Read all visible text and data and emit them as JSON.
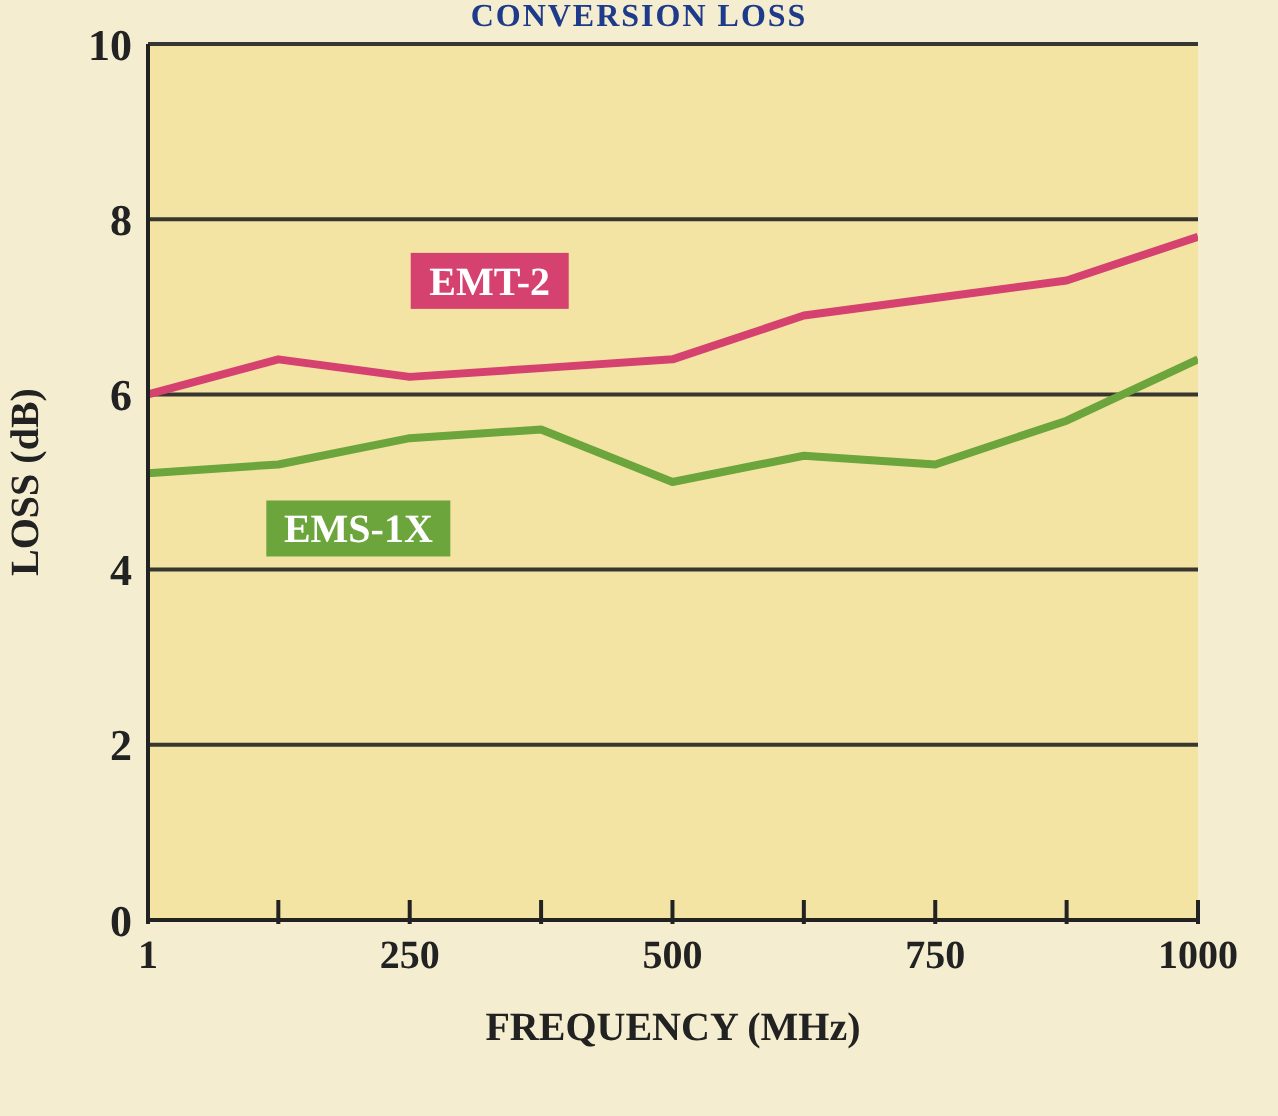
{
  "chart_data": {
    "type": "line",
    "title": "CONVERSION LOSS",
    "xlabel": "FREQUENCY (MHz)",
    "ylabel": "LOSS (dB)",
    "x": [
      1,
      125,
      250,
      375,
      500,
      625,
      750,
      875,
      1000
    ],
    "series": [
      {
        "name": "EMT-2",
        "color": "#d6426f",
        "values": [
          6.0,
          6.4,
          6.2,
          6.3,
          6.4,
          6.9,
          7.1,
          7.3,
          7.8
        ]
      },
      {
        "name": "EMS-1X",
        "color": "#6ca53c",
        "values": [
          5.1,
          5.2,
          5.5,
          5.6,
          5.0,
          5.3,
          5.2,
          5.7,
          6.4
        ]
      }
    ],
    "xlim": [
      1,
      1000
    ],
    "xticks": [
      1,
      {
        "value": 125,
        "label": null
      },
      250,
      {
        "value": 375,
        "label": null
      },
      500,
      {
        "value": 625,
        "label": null
      },
      750,
      {
        "value": 875,
        "label": null
      },
      1000
    ],
    "ylim": [
      0,
      10
    ],
    "yticks": [
      0,
      2,
      4,
      6,
      8,
      10
    ],
    "grid": "y",
    "legend": false,
    "marker": "none",
    "line_style": "solid"
  }
}
